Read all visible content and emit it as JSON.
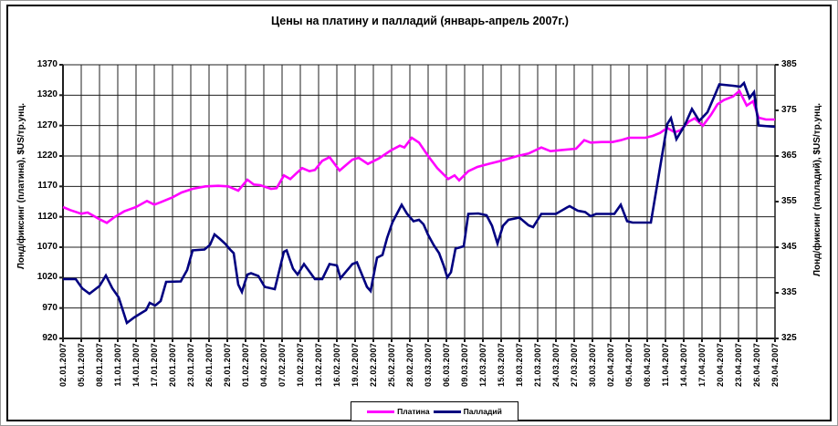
{
  "figure": {
    "title": "Цены на платину и палладий (январь-апрель 2007г.)"
  },
  "chart_data": {
    "type": "line",
    "title": "Цены на платину и палладий (январь-апрель 2007г.)",
    "grid": true,
    "legend_position": "bottom",
    "x_axis": {
      "tick_labels": [
        "02.01.2007",
        "05.01.2007",
        "08.01.2007",
        "11.01.2007",
        "14.01.2007",
        "17.01.2007",
        "20.01.2007",
        "23.01.2007",
        "26.01.2007",
        "29.01.2007",
        "01.02.2007",
        "04.02.2007",
        "07.02.2007",
        "10.02.2007",
        "13.02.2007",
        "16.02.2007",
        "19.02.2007",
        "22.02.2007",
        "25.02.2007",
        "28.02.2007",
        "03.03.2007",
        "06.03.2007",
        "09.03.2007",
        "12.03.2007",
        "15.03.2007",
        "18.03.2007",
        "21.03.2007",
        "24.03.2007",
        "27.03.2007",
        "30.03.2007",
        "02.04.2007",
        "05.04.2007",
        "08.04.2007",
        "11.04.2007",
        "14.04.2007",
        "17.04.2007",
        "20.04.2007",
        "23.04.2007",
        "26.04.2007",
        "29.04.2007"
      ]
    },
    "left_axis": {
      "label": "Лонд/фиксинг (платина), $US/тр.унц.",
      "min": 920,
      "max": 1370,
      "step": 50,
      "ticks": [
        920,
        970,
        1020,
        1070,
        1120,
        1170,
        1220,
        1270,
        1320,
        1370
      ]
    },
    "right_axis": {
      "label": "Лонд/фиксинг (палладий), $US/тр.унц.",
      "min": 325,
      "max": 385,
      "step": 10,
      "ticks": [
        325,
        335,
        345,
        355,
        365,
        375,
        385
      ]
    },
    "series": [
      {
        "name": "Платина",
        "axis": "left",
        "color": "#FF00FF",
        "points": [
          [
            0,
            1136
          ],
          [
            0.4,
            1131
          ],
          [
            1,
            1125
          ],
          [
            1.35,
            1127
          ],
          [
            2,
            1116
          ],
          [
            2.4,
            1110
          ],
          [
            2.8,
            1119
          ],
          [
            3.35,
            1129
          ],
          [
            4,
            1136
          ],
          [
            4.6,
            1146
          ],
          [
            5,
            1140
          ],
          [
            5.35,
            1144
          ],
          [
            6,
            1152
          ],
          [
            6.5,
            1160
          ],
          [
            7.1,
            1166
          ],
          [
            7.8,
            1170
          ],
          [
            8.5,
            1171
          ],
          [
            9.05,
            1170
          ],
          [
            9.6,
            1163
          ],
          [
            10.1,
            1181
          ],
          [
            10.45,
            1173
          ],
          [
            10.8,
            1172
          ],
          [
            11.4,
            1166
          ],
          [
            11.7,
            1167
          ],
          [
            12.1,
            1188
          ],
          [
            12.45,
            1182
          ],
          [
            12.8,
            1192
          ],
          [
            13.1,
            1200
          ],
          [
            13.5,
            1195
          ],
          [
            13.8,
            1197
          ],
          [
            14.2,
            1212
          ],
          [
            14.6,
            1218
          ],
          [
            15.15,
            1196
          ],
          [
            15.85,
            1214
          ],
          [
            16.2,
            1217
          ],
          [
            16.7,
            1207
          ],
          [
            17.3,
            1216
          ],
          [
            17.95,
            1229
          ],
          [
            18.45,
            1237
          ],
          [
            18.7,
            1234
          ],
          [
            19.1,
            1250
          ],
          [
            19.5,
            1242
          ],
          [
            20,
            1220
          ],
          [
            20.5,
            1200
          ],
          [
            21.1,
            1182
          ],
          [
            21.45,
            1188
          ],
          [
            21.7,
            1180
          ],
          [
            22.2,
            1195
          ],
          [
            22.7,
            1202
          ],
          [
            23.3,
            1207
          ],
          [
            24,
            1212
          ],
          [
            24.9,
            1220
          ],
          [
            25.5,
            1224
          ],
          [
            26.2,
            1234
          ],
          [
            26.7,
            1228
          ],
          [
            27.4,
            1230
          ],
          [
            28.1,
            1232
          ],
          [
            28.55,
            1246
          ],
          [
            28.9,
            1242
          ],
          [
            29.5,
            1243
          ],
          [
            30.1,
            1243
          ],
          [
            30.55,
            1246
          ],
          [
            31,
            1250
          ],
          [
            31.9,
            1250
          ],
          [
            32.3,
            1253
          ],
          [
            32.7,
            1258
          ],
          [
            33.1,
            1266
          ],
          [
            33.5,
            1259
          ],
          [
            33.8,
            1262
          ],
          [
            34.3,
            1277
          ],
          [
            34.6,
            1282
          ],
          [
            35.05,
            1270
          ],
          [
            35.5,
            1288
          ],
          [
            35.85,
            1305
          ],
          [
            36.2,
            1312
          ],
          [
            36.7,
            1318
          ],
          [
            37.05,
            1327
          ],
          [
            37.45,
            1303
          ],
          [
            37.8,
            1310
          ],
          [
            38.1,
            1283
          ],
          [
            38.5,
            1280
          ],
          [
            39,
            1280
          ]
        ]
      },
      {
        "name": "Палладий",
        "axis": "right",
        "color": "#000080",
        "points": [
          [
            0,
            338
          ],
          [
            0.7,
            338
          ],
          [
            1.05,
            336
          ],
          [
            1.45,
            334.8
          ],
          [
            2,
            336.5
          ],
          [
            2.35,
            338.8
          ],
          [
            2.7,
            336
          ],
          [
            3.05,
            334
          ],
          [
            3.5,
            328.4
          ],
          [
            3.9,
            329.6
          ],
          [
            4.3,
            330.6
          ],
          [
            4.55,
            331.2
          ],
          [
            4.75,
            332.8
          ],
          [
            5.05,
            332.2
          ],
          [
            5.35,
            333.2
          ],
          [
            5.65,
            337.4
          ],
          [
            6.45,
            337.5
          ],
          [
            6.8,
            340
          ],
          [
            7.1,
            344.3
          ],
          [
            7.75,
            344.5
          ],
          [
            8.05,
            345.5
          ],
          [
            8.3,
            347.8
          ],
          [
            8.6,
            346.8
          ],
          [
            8.9,
            345.7
          ],
          [
            9.15,
            344.5
          ],
          [
            9.35,
            343.7
          ],
          [
            9.6,
            336.8
          ],
          [
            9.8,
            335.2
          ],
          [
            10.1,
            339
          ],
          [
            10.3,
            339.3
          ],
          [
            10.7,
            338.7
          ],
          [
            11.05,
            336.3
          ],
          [
            11.6,
            335.8
          ],
          [
            12.1,
            344
          ],
          [
            12.25,
            344.3
          ],
          [
            12.6,
            340.3
          ],
          [
            12.85,
            339
          ],
          [
            13.2,
            341.3
          ],
          [
            13.8,
            338
          ],
          [
            14.2,
            338
          ],
          [
            14.6,
            341.3
          ],
          [
            15,
            341
          ],
          [
            15.2,
            338.2
          ],
          [
            15.85,
            341.3
          ],
          [
            16.1,
            341.7
          ],
          [
            16.65,
            336.3
          ],
          [
            16.85,
            335.4
          ],
          [
            17.2,
            342.7
          ],
          [
            17.5,
            343.3
          ],
          [
            17.75,
            347
          ],
          [
            18.05,
            350.5
          ],
          [
            18.3,
            352.4
          ],
          [
            18.55,
            354.3
          ],
          [
            18.85,
            352.3
          ],
          [
            19.2,
            350.7
          ],
          [
            19.5,
            351
          ],
          [
            19.75,
            350
          ],
          [
            20,
            347.7
          ],
          [
            20.3,
            345.5
          ],
          [
            20.6,
            343.7
          ],
          [
            20.85,
            341
          ],
          [
            21.05,
            338.4
          ],
          [
            21.25,
            339.5
          ],
          [
            21.5,
            344.7
          ],
          [
            21.95,
            345.2
          ],
          [
            22.2,
            352.3
          ],
          [
            22.75,
            352.4
          ],
          [
            23.2,
            352
          ],
          [
            23.5,
            349.7
          ],
          [
            23.8,
            345.8
          ],
          [
            24.1,
            349.7
          ],
          [
            24.4,
            351
          ],
          [
            25,
            351.5
          ],
          [
            25.5,
            349.8
          ],
          [
            25.75,
            349.4
          ],
          [
            26.2,
            352.3
          ],
          [
            27,
            352.3
          ],
          [
            27.6,
            353.7
          ],
          [
            27.75,
            354
          ],
          [
            28.2,
            353
          ],
          [
            28.6,
            352.7
          ],
          [
            28.9,
            351.8
          ],
          [
            29.2,
            352.3
          ],
          [
            30.2,
            352.3
          ],
          [
            30.55,
            354.3
          ],
          [
            30.9,
            350.7
          ],
          [
            31.2,
            350.4
          ],
          [
            32.2,
            350.4
          ],
          [
            33.1,
            372
          ],
          [
            33.3,
            373.3
          ],
          [
            33.6,
            368.7
          ],
          [
            34.05,
            371.7
          ],
          [
            34.45,
            375.3
          ],
          [
            34.85,
            372.7
          ],
          [
            35.3,
            374.6
          ],
          [
            35.7,
            378.3
          ],
          [
            35.95,
            380.7
          ],
          [
            36.7,
            380.4
          ],
          [
            37.1,
            380.2
          ],
          [
            37.3,
            381
          ],
          [
            37.6,
            377.7
          ],
          [
            37.85,
            379
          ],
          [
            38.1,
            371.7
          ],
          [
            39,
            371.4
          ]
        ]
      }
    ]
  }
}
